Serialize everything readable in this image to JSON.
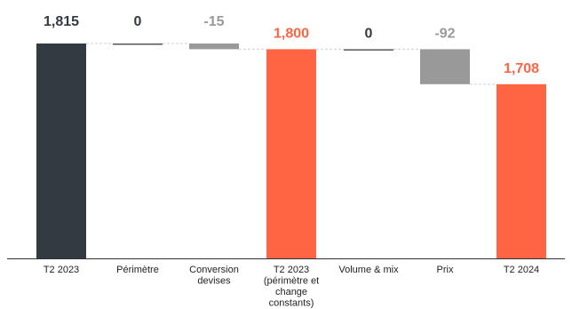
{
  "chart_data": {
    "type": "bar",
    "subtype": "waterfall",
    "categories": [
      [
        "T2 2023"
      ],
      [
        "Périmètre"
      ],
      [
        "Conversion",
        "devises"
      ],
      [
        "T2 2023",
        "(périmètre et",
        "change",
        "constants)"
      ],
      [
        "Volume & mix"
      ],
      [
        "Prix"
      ],
      [
        "T2 2024"
      ]
    ],
    "values": [
      1815,
      0,
      -15,
      1800,
      0,
      -92,
      1708
    ],
    "value_labels": [
      "1,815",
      "0",
      "-15",
      "1,800",
      "0",
      "-92",
      "1,708"
    ],
    "kinds": [
      "total",
      "delta",
      "delta",
      "total",
      "delta",
      "delta",
      "total"
    ],
    "ylim": [
      1250,
      1820
    ],
    "grid": false,
    "connectors": true,
    "colors": {
      "start_total": "#343a42",
      "total": "#ff6543",
      "delta_bar": "#999999",
      "delta_zero": "#555555",
      "label_dark": "#343a42",
      "label_orange": "#ff6543",
      "label_gray": "#999999",
      "connector": "#d0d0d0",
      "axis": "#333333"
    }
  }
}
